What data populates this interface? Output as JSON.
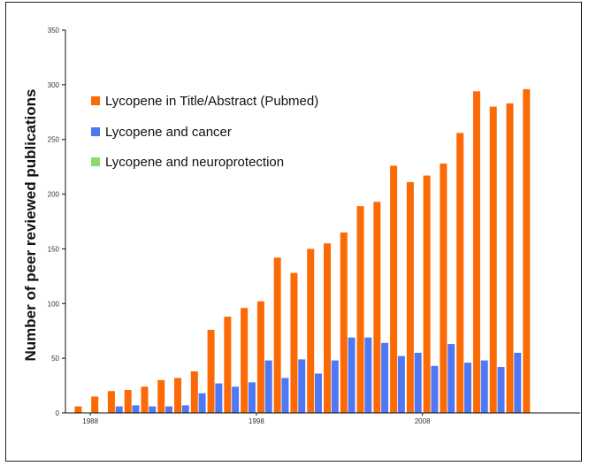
{
  "chart_data": {
    "type": "bar",
    "title": "",
    "xlabel": "",
    "ylabel": "Number of peer reviewed publications",
    "ylim": [
      0,
      350
    ],
    "yticks": [
      0,
      50,
      100,
      150,
      200,
      250,
      300,
      350
    ],
    "xticks": [
      "1988",
      "1998",
      "2008"
    ],
    "grid": false,
    "legend_position": "top-left",
    "categories": [
      "1987",
      "1988",
      "1989",
      "1990",
      "1991",
      "1992",
      "1993",
      "1994",
      "1995",
      "1996",
      "1997",
      "1998",
      "1999",
      "2000",
      "2001",
      "2002",
      "2003",
      "2004",
      "2005",
      "2006",
      "2007",
      "2008",
      "2009",
      "2010",
      "2011",
      "2012",
      "2013",
      "2014",
      "2015",
      "2016",
      "2017"
    ],
    "series": [
      {
        "name": "Lycopene in Title/Abstract (Pubmed)",
        "color": "#fb6a05",
        "values": [
          6,
          15,
          20,
          21,
          24,
          30,
          32,
          38,
          76,
          88,
          96,
          102,
          142,
          128,
          150,
          155,
          165,
          189,
          193,
          226,
          211,
          217,
          228,
          256,
          294,
          280,
          283,
          296,
          null,
          null,
          null
        ]
      },
      {
        "name": "Lycopene and cancer",
        "color": "#4f78f5",
        "values": [
          0,
          0,
          0,
          6,
          7,
          6,
          6,
          7,
          18,
          27,
          24,
          28,
          48,
          32,
          49,
          36,
          48,
          69,
          69,
          64,
          52,
          55,
          43,
          63,
          46,
          48,
          42,
          55,
          null,
          null,
          null
        ]
      },
      {
        "name": "Lycopene and neuroprotection",
        "color": "#8fd96a",
        "values": [
          0,
          0,
          0,
          0,
          0,
          0,
          0,
          0,
          0,
          0,
          0,
          0,
          0,
          0,
          0,
          0,
          0,
          0,
          0,
          0,
          0,
          0,
          0,
          0,
          0,
          0,
          0,
          0,
          null,
          null,
          null
        ]
      }
    ]
  }
}
